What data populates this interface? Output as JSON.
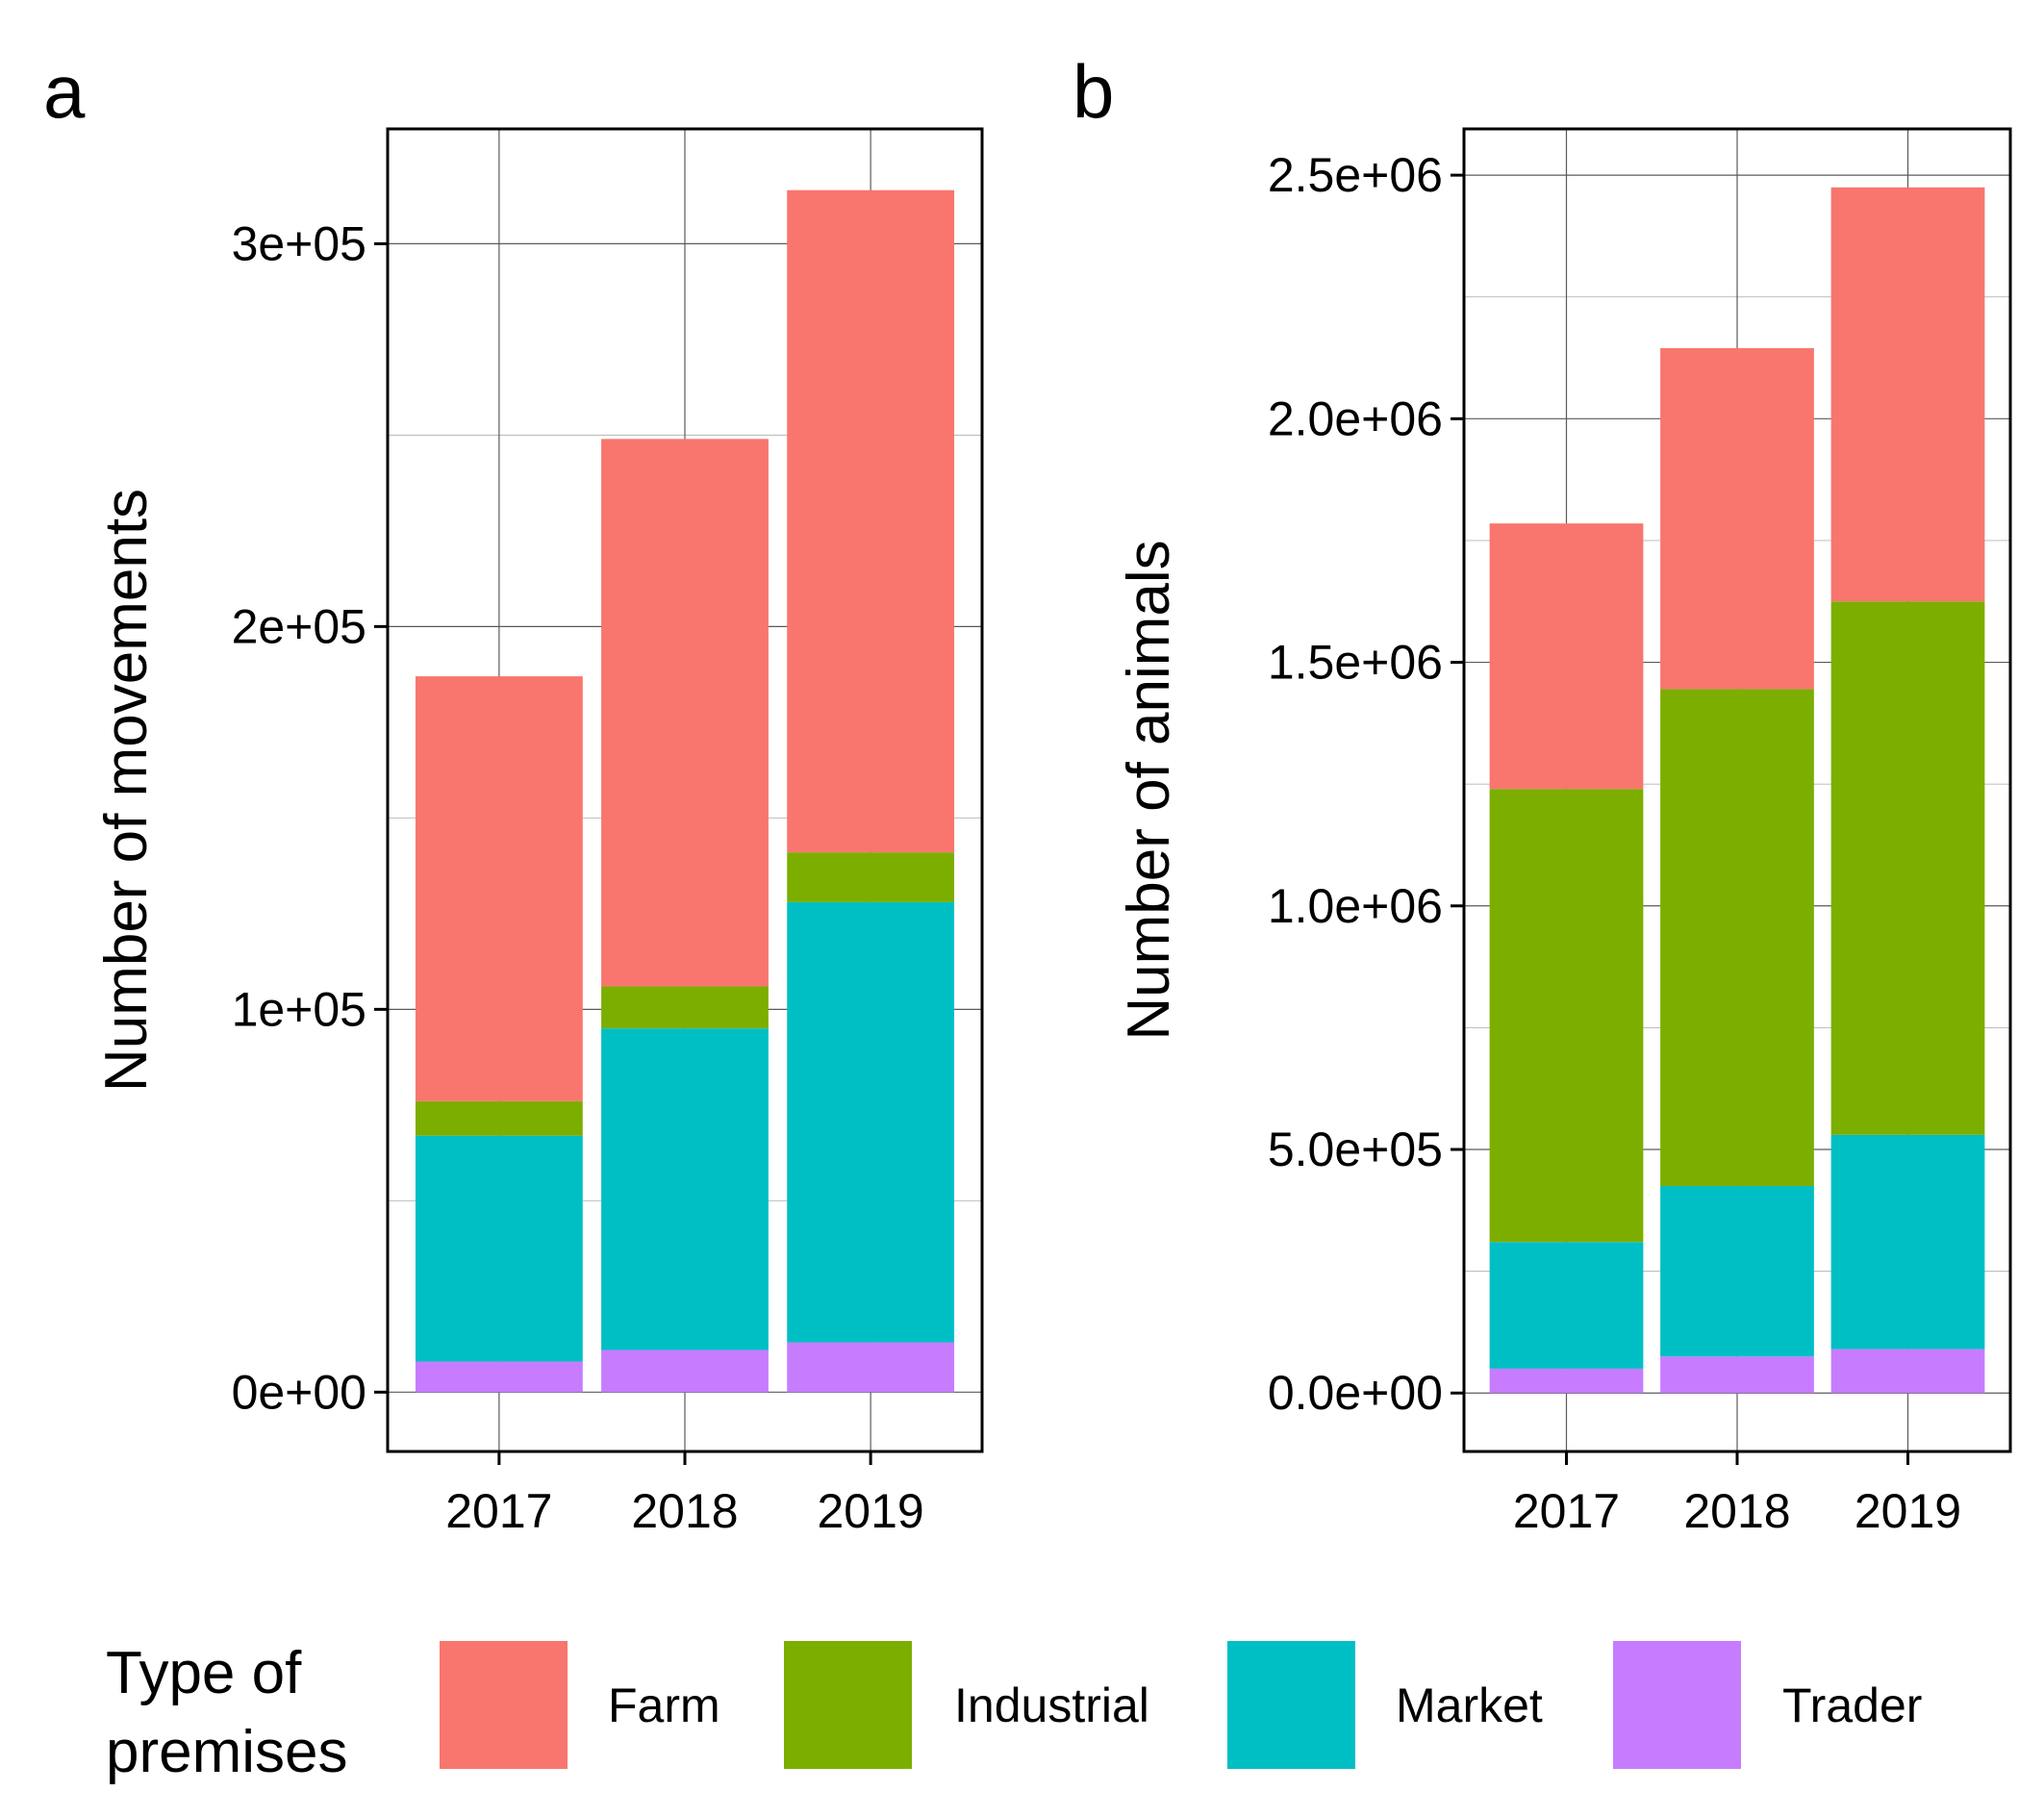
{
  "colors": {
    "Farm": "#F8766D",
    "Industrial": "#7CAE00",
    "Market": "#00BFC4",
    "Trader": "#C77CFF"
  },
  "chart_data": [
    {
      "panel": "a",
      "type": "bar",
      "stacked": true,
      "categories": [
        "2017",
        "2018",
        "2019"
      ],
      "xlabel": "",
      "ylabel": "Number of movements",
      "ylim": [
        -15500,
        330000
      ],
      "yticks": [
        0,
        100000,
        200000,
        300000
      ],
      "ytick_labels": [
        "0e+00",
        "1e+05",
        "2e+05",
        "3e+05"
      ],
      "grid": true,
      "series": [
        {
          "name": "Trader",
          "values": [
            8000,
            11000,
            13000
          ]
        },
        {
          "name": "Market",
          "values": [
            59000,
            84000,
            115000
          ]
        },
        {
          "name": "Industrial",
          "values": [
            9000,
            11000,
            13000
          ]
        },
        {
          "name": "Farm",
          "values": [
            111000,
            143000,
            173000
          ]
        }
      ]
    },
    {
      "panel": "b",
      "type": "bar",
      "stacked": true,
      "categories": [
        "2017",
        "2018",
        "2019"
      ],
      "xlabel": "",
      "ylabel": "Number of animals",
      "ylim": [
        -120000,
        2595000
      ],
      "yticks": [
        0,
        500000,
        1000000,
        1500000,
        2000000,
        2500000
      ],
      "ytick_labels": [
        "0.0e+00",
        "5.0e+05",
        "1.0e+06",
        "1.5e+06",
        "2.0e+06",
        "2.5e+06"
      ],
      "grid": true,
      "series": [
        {
          "name": "Trader",
          "values": [
            50000,
            75000,
            90000
          ]
        },
        {
          "name": "Market",
          "values": [
            260000,
            350000,
            440000
          ]
        },
        {
          "name": "Industrial",
          "values": [
            930000,
            1020000,
            1095000
          ]
        },
        {
          "name": "Farm",
          "values": [
            545000,
            700000,
            850000
          ]
        }
      ]
    }
  ],
  "legend": {
    "title_line1": "Type of",
    "title_line2": "premises",
    "position": "bottom",
    "items": [
      {
        "name": "Farm"
      },
      {
        "name": "Industrial"
      },
      {
        "name": "Market"
      },
      {
        "name": "Trader"
      }
    ]
  }
}
